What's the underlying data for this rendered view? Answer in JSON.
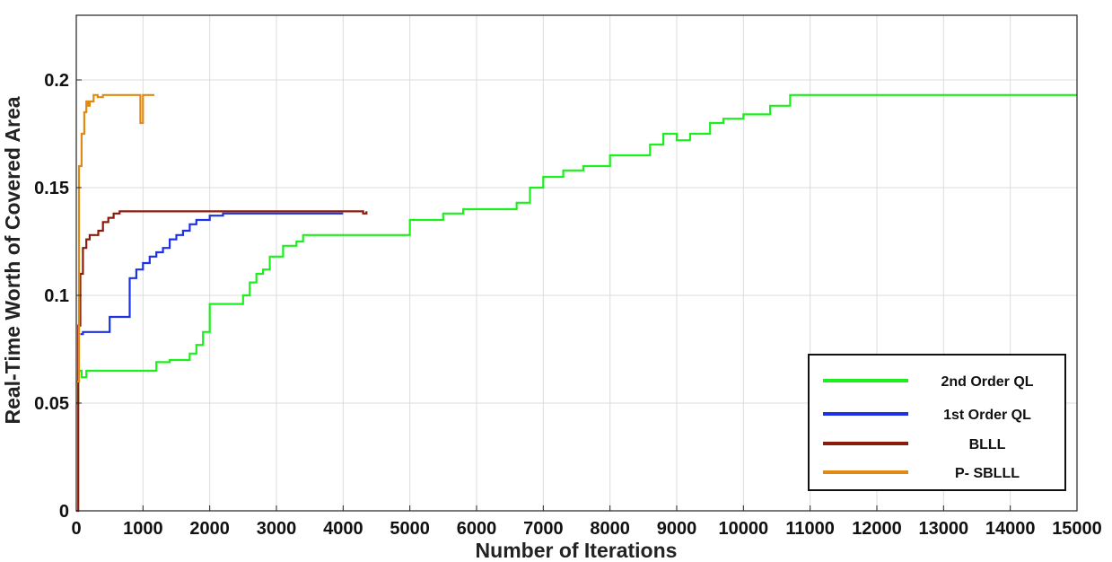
{
  "chart_data": {
    "type": "line",
    "title": "",
    "xlabel": "Number of Iterations",
    "ylabel": "Real-Time Worth of Covered Area",
    "xlim": [
      0,
      15000
    ],
    "ylim": [
      0,
      0.23
    ],
    "xticks": [
      0,
      1000,
      2000,
      3000,
      4000,
      5000,
      6000,
      7000,
      8000,
      9000,
      10000,
      11000,
      12000,
      13000,
      14000,
      15000
    ],
    "yticks": [
      0,
      0.05,
      0.1,
      0.15,
      0.2
    ],
    "xtick_labels": [
      "0",
      "1000",
      "2000",
      "3000",
      "4000",
      "5000",
      "6000",
      "7000",
      "8000",
      "9000",
      "10000",
      "11000",
      "12000",
      "13000",
      "14000",
      "15000"
    ],
    "ytick_labels": [
      "0",
      "0.05",
      "0.1",
      "0.15",
      "0.2"
    ],
    "grid": true,
    "legend_position": "bottom-right",
    "series": [
      {
        "name": "2nd Order QL",
        "color": "#1cf01c",
        "x": [
          0,
          30,
          80,
          150,
          300,
          700,
          1100,
          1200,
          1400,
          1600,
          1700,
          1800,
          1900,
          2000,
          2200,
          2400,
          2500,
          2600,
          2700,
          2800,
          2900,
          3000,
          3100,
          3200,
          3300,
          3400,
          3500,
          3700,
          4000,
          4300,
          4600,
          5000,
          5200,
          5500,
          5800,
          6000,
          6300,
          6600,
          6800,
          7000,
          7300,
          7600,
          8000,
          8300,
          8600,
          8800,
          9000,
          9200,
          9500,
          9700,
          10000,
          10400,
          10700,
          11000,
          12000,
          13000,
          14000,
          15000
        ],
        "y": [
          0.05,
          0.065,
          0.062,
          0.065,
          0.065,
          0.065,
          0.065,
          0.069,
          0.07,
          0.07,
          0.073,
          0.077,
          0.083,
          0.096,
          0.096,
          0.096,
          0.1,
          0.106,
          0.11,
          0.112,
          0.118,
          0.118,
          0.123,
          0.123,
          0.125,
          0.128,
          0.128,
          0.128,
          0.128,
          0.128,
          0.128,
          0.135,
          0.135,
          0.138,
          0.14,
          0.14,
          0.14,
          0.143,
          0.15,
          0.155,
          0.158,
          0.16,
          0.165,
          0.165,
          0.17,
          0.175,
          0.172,
          0.175,
          0.18,
          0.182,
          0.184,
          0.188,
          0.193,
          0.193,
          0.193,
          0.193,
          0.193,
          0.193
        ]
      },
      {
        "name": "1st Order QL",
        "color": "#1c32e6",
        "x": [
          60,
          100,
          180,
          350,
          500,
          700,
          800,
          900,
          1000,
          1100,
          1200,
          1300,
          1400,
          1500,
          1600,
          1700,
          1800,
          2000,
          2200,
          2500,
          2800,
          3000,
          3300,
          3600,
          3900,
          4000
        ],
        "y": [
          0.082,
          0.083,
          0.083,
          0.083,
          0.09,
          0.09,
          0.108,
          0.112,
          0.115,
          0.118,
          0.12,
          0.122,
          0.126,
          0.128,
          0.13,
          0.133,
          0.135,
          0.137,
          0.138,
          0.138,
          0.138,
          0.138,
          0.138,
          0.138,
          0.138,
          0.138
        ]
      },
      {
        "name": "BLLL",
        "color": "#8b1c0c",
        "x": [
          0,
          30,
          60,
          100,
          150,
          200,
          260,
          330,
          400,
          480,
          560,
          650,
          800,
          1000,
          1300,
          1600,
          2000,
          2500,
          3000,
          3500,
          4000,
          4300,
          4350
        ],
        "y": [
          0.0,
          0.086,
          0.11,
          0.122,
          0.126,
          0.128,
          0.128,
          0.13,
          0.134,
          0.136,
          0.138,
          0.139,
          0.139,
          0.139,
          0.139,
          0.139,
          0.139,
          0.139,
          0.139,
          0.139,
          0.139,
          0.138,
          0.139
        ]
      },
      {
        "name": "P- SBLLL",
        "color": "#e08a14",
        "x": [
          0,
          40,
          80,
          120,
          150,
          180,
          200,
          260,
          320,
          400,
          500,
          600,
          700,
          800,
          900,
          960,
          1000,
          1100,
          1170
        ],
        "y": [
          0.06,
          0.16,
          0.175,
          0.185,
          0.19,
          0.188,
          0.19,
          0.193,
          0.192,
          0.193,
          0.193,
          0.193,
          0.193,
          0.193,
          0.193,
          0.18,
          0.193,
          0.193,
          0.193
        ]
      }
    ]
  }
}
